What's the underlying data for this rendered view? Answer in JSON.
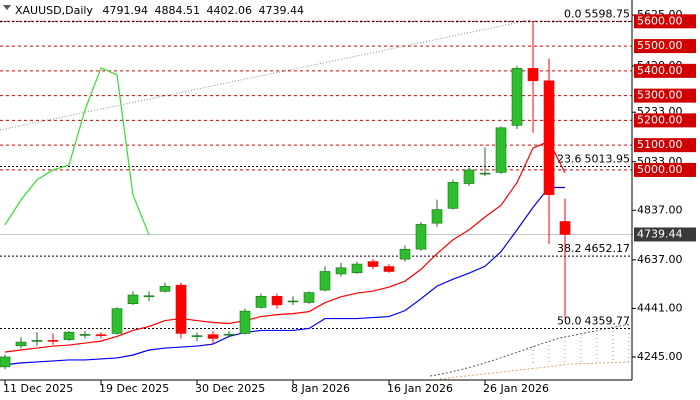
{
  "chart_data": {
    "type": "candlestick",
    "symbol": "XAUUSD,Daily",
    "categories": [
      "11 Dec 2025",
      null,
      null,
      null,
      null,
      null,
      "19 Dec 2025",
      null,
      null,
      null,
      null,
      null,
      "30 Dec 2025",
      null,
      null,
      null,
      null,
      null,
      "8 Jan 2026",
      null,
      null,
      null,
      null,
      null,
      "16 Jan 2026",
      null,
      null,
      null,
      null,
      null,
      "26 Jan 2026",
      null,
      null,
      null,
      null,
      null
    ],
    "open": [
      4205,
      4290,
      4310,
      4312,
      4315,
      4335,
      4335,
      4340,
      4460,
      4490,
      4510,
      4535,
      4330,
      4335,
      4335,
      4340,
      4445,
      4490,
      4470,
      4465,
      4515,
      4580,
      4585,
      4630,
      4610,
      4640,
      4680,
      4785,
      4845,
      4945,
      4985,
      4990,
      5180,
      5410,
      5360,
      4791.94
    ],
    "high": [
      4255,
      4325,
      4345,
      4340,
      4350,
      4350,
      4345,
      4445,
      4510,
      4510,
      4545,
      4545,
      4345,
      4350,
      4350,
      4440,
      4500,
      4500,
      4490,
      4510,
      4610,
      4625,
      4630,
      4640,
      4620,
      4695,
      4790,
      4880,
      4960,
      5010,
      5090,
      5175,
      5420,
      5600,
      5450,
      4884.51
    ],
    "low": [
      4195,
      4280,
      4290,
      4295,
      4310,
      4320,
      4320,
      4335,
      4455,
      4470,
      4505,
      4320,
      4310,
      4295,
      4325,
      4335,
      4440,
      4440,
      4455,
      4460,
      4510,
      4570,
      4580,
      4600,
      4585,
      4630,
      4675,
      4770,
      4840,
      4935,
      4975,
      4985,
      5165,
      5150,
      4700,
      4402.06
    ],
    "close": [
      4245,
      4305,
      4312,
      4310,
      4345,
      4336,
      4333,
      4440,
      4495,
      4492,
      4530,
      4340,
      4331,
      4320,
      4337,
      4430,
      4490,
      4455,
      4471,
      4505,
      4590,
      4605,
      4620,
      4610,
      4590,
      4680,
      4780,
      4840,
      4950,
      5000,
      4987,
      5170,
      5410,
      5360,
      4900,
      4739.44
    ],
    "up_color": "#2dbd2d",
    "down_color": "#ff0000",
    "lines": [
      {
        "color": "#0000ff",
        "values": [
          4213,
          4221,
          4225,
          4229,
          4233,
          4233,
          4237,
          4241,
          4253,
          4273,
          4281,
          4285,
          4289,
          4297,
          4328,
          4344,
          4352,
          4352,
          4352,
          4360,
          4400,
          4400,
          4400,
          4404,
          4408,
          4432,
          4480,
          4531,
          4559,
          4583,
          4611,
          4670,
          4758,
          4849,
          4929,
          4929
        ]
      },
      {
        "color": "#ff0000",
        "values": [
          4265,
          4273,
          4281,
          4289,
          4293,
          4301,
          4309,
          4328,
          4352,
          4368,
          4392,
          4400,
          4392,
          4384,
          4380,
          4392,
          4408,
          4416,
          4420,
          4428,
          4464,
          4488,
          4503,
          4511,
          4527,
          4551,
          4599,
          4662,
          4718,
          4758,
          4810,
          4857,
          4949,
          5088,
          5116,
          4988
        ]
      },
      {
        "color": "#33dd33",
        "values": [
          4778,
          4879,
          4960,
          5000,
          5020,
          5242,
          5412,
          5384,
          4899,
          4738,
          null,
          null,
          null,
          null,
          null,
          null,
          null,
          null,
          null,
          null,
          null,
          null,
          null,
          null,
          null,
          null,
          null,
          null,
          null,
          null,
          null,
          null,
          null,
          null,
          null,
          null
        ]
      }
    ],
    "levels": [
      {
        "value": 5600,
        "label": "5600.00"
      },
      {
        "value": 5500,
        "label": "5500.00"
      },
      {
        "value": 5400,
        "label": "5400.00"
      },
      {
        "value": 5300,
        "label": "5300.00"
      },
      {
        "value": 5200,
        "label": "5200.00"
      },
      {
        "value": 5100,
        "label": "5100.00"
      },
      {
        "value": 5000,
        "label": "5000.00"
      }
    ],
    "level_color": "#d00000",
    "fibonacci": [
      {
        "level": "0.0",
        "price": 5598.75
      },
      {
        "level": "23.6",
        "price": 5013.95
      },
      {
        "level": "38.2",
        "price": 4652.17
      },
      {
        "level": "50.0",
        "price": 4359.77
      }
    ],
    "ylim": [
      4152,
      5686
    ],
    "yticks": [
      {
        "value": 5625,
        "label": "5625.00"
      },
      {
        "value": 5420,
        "label": "5420.00"
      },
      {
        "value": 5233,
        "label": "5233.00"
      },
      {
        "value": 5033,
        "label": "5033.00"
      },
      {
        "value": 4837,
        "label": "4837.00"
      },
      {
        "value": 4637,
        "label": "4637.00"
      },
      {
        "value": 4441,
        "label": "4441.00"
      },
      {
        "value": 4245,
        "label": "4245.00"
      }
    ]
  }
}
